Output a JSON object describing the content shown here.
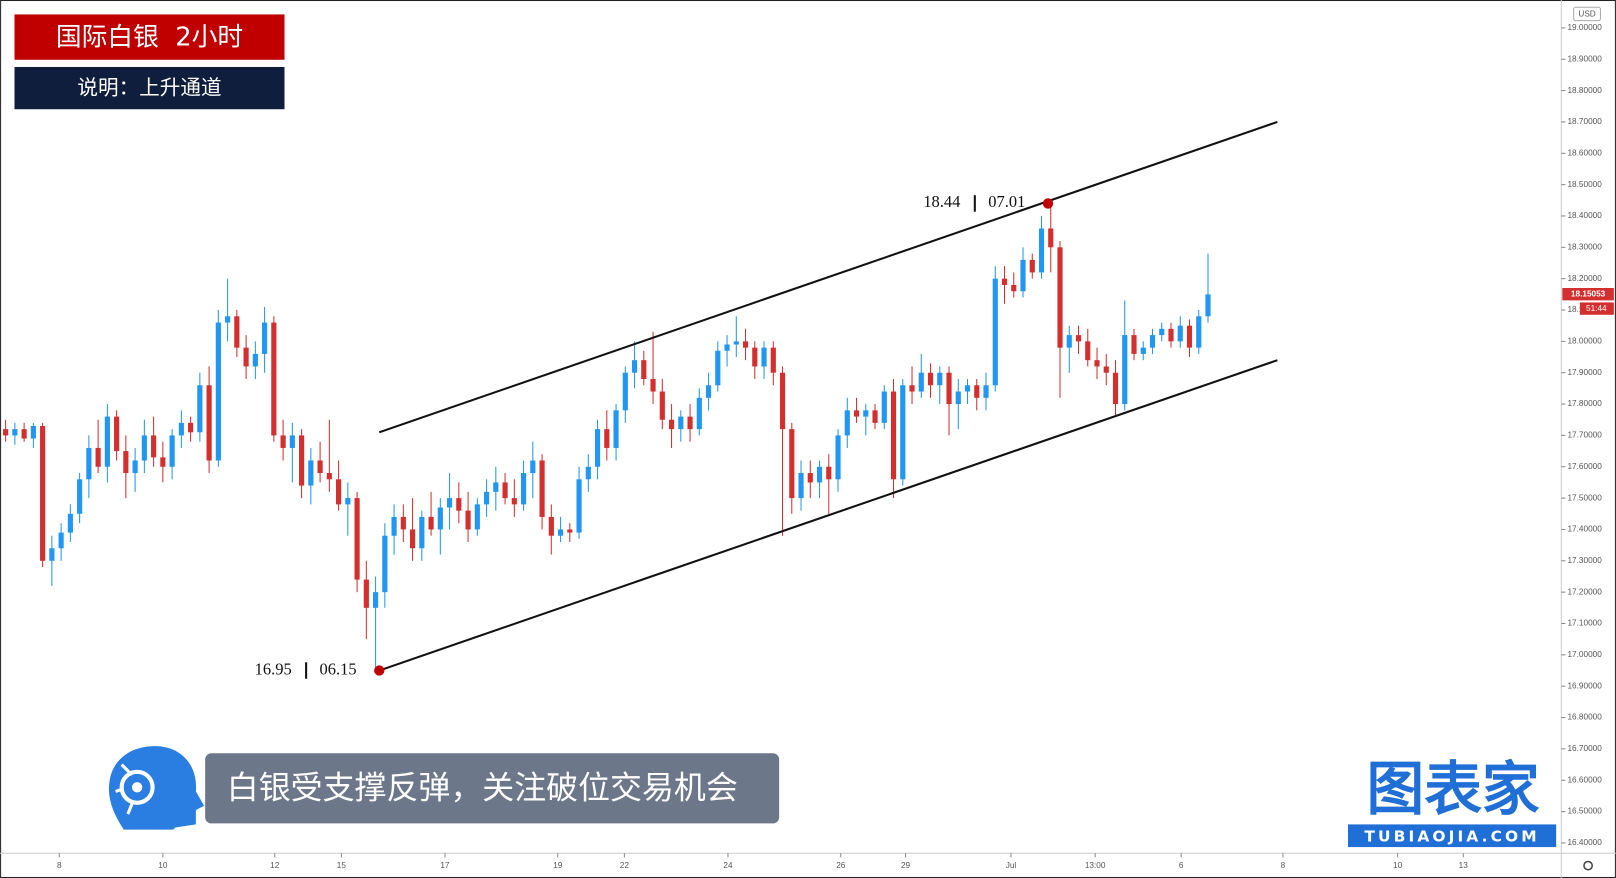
{
  "chart_data": {
    "type": "candlestick",
    "title": "国际白银  2小时",
    "subtitle": "说明：上升通道",
    "banner": "白银受支撑反弹，关注破位交易机会",
    "logo": "图表家",
    "logo_sub": "TUBIAOJIA.COM",
    "currency": "USD",
    "countdown": "51:44",
    "last_price": 18.15053,
    "up_color": "#2196f3",
    "down_color": "#d32f2f",
    "candles": [
      [
        17.72,
        17.75,
        17.68,
        17.7
      ],
      [
        17.7,
        17.74,
        17.67,
        17.72
      ],
      [
        17.72,
        17.74,
        17.68,
        17.69
      ],
      [
        17.69,
        17.74,
        17.66,
        17.73
      ],
      [
        17.73,
        17.74,
        17.28,
        17.3
      ],
      [
        17.3,
        17.38,
        17.22,
        17.34
      ],
      [
        17.34,
        17.42,
        17.3,
        17.39
      ],
      [
        17.39,
        17.48,
        17.36,
        17.45
      ],
      [
        17.45,
        17.58,
        17.42,
        17.56
      ],
      [
        17.56,
        17.7,
        17.5,
        17.66
      ],
      [
        17.66,
        17.75,
        17.58,
        17.6
      ],
      [
        17.6,
        17.8,
        17.55,
        17.76
      ],
      [
        17.76,
        17.78,
        17.62,
        17.65
      ],
      [
        17.65,
        17.7,
        17.5,
        17.58
      ],
      [
        17.58,
        17.66,
        17.52,
        17.62
      ],
      [
        17.62,
        17.75,
        17.58,
        17.7
      ],
      [
        17.7,
        17.76,
        17.6,
        17.63
      ],
      [
        17.63,
        17.68,
        17.55,
        17.6
      ],
      [
        17.6,
        17.72,
        17.56,
        17.7
      ],
      [
        17.7,
        17.78,
        17.66,
        17.74
      ],
      [
        17.74,
        17.76,
        17.68,
        17.71
      ],
      [
        17.71,
        17.9,
        17.68,
        17.86
      ],
      [
        17.86,
        17.92,
        17.58,
        17.62
      ],
      [
        17.62,
        18.1,
        17.6,
        18.06
      ],
      [
        18.06,
        18.2,
        18.0,
        18.08
      ],
      [
        18.08,
        18.1,
        17.95,
        17.98
      ],
      [
        17.98,
        18.02,
        17.88,
        17.92
      ],
      [
        17.92,
        18.0,
        17.88,
        17.96
      ],
      [
        17.96,
        18.11,
        17.9,
        18.06
      ],
      [
        18.06,
        18.08,
        17.68,
        17.7
      ],
      [
        17.7,
        17.75,
        17.62,
        17.66
      ],
      [
        17.66,
        17.74,
        17.55,
        17.7
      ],
      [
        17.7,
        17.72,
        17.5,
        17.54
      ],
      [
        17.54,
        17.66,
        17.48,
        17.62
      ],
      [
        17.62,
        17.68,
        17.55,
        17.58
      ],
      [
        17.58,
        17.75,
        17.52,
        17.56
      ],
      [
        17.56,
        17.62,
        17.46,
        17.48
      ],
      [
        17.48,
        17.55,
        17.38,
        17.5
      ],
      [
        17.5,
        17.52,
        17.2,
        17.24
      ],
      [
        17.24,
        17.3,
        17.05,
        17.15
      ],
      [
        17.15,
        17.25,
        16.95,
        17.2
      ],
      [
        17.2,
        17.42,
        17.15,
        17.38
      ],
      [
        17.38,
        17.48,
        17.32,
        17.44
      ],
      [
        17.44,
        17.48,
        17.36,
        17.4
      ],
      [
        17.4,
        17.5,
        17.3,
        17.34
      ],
      [
        17.34,
        17.46,
        17.3,
        17.44
      ],
      [
        17.44,
        17.52,
        17.38,
        17.4
      ],
      [
        17.4,
        17.5,
        17.32,
        17.47
      ],
      [
        17.47,
        17.58,
        17.4,
        17.5
      ],
      [
        17.5,
        17.55,
        17.42,
        17.46
      ],
      [
        17.46,
        17.52,
        17.36,
        17.4
      ],
      [
        17.4,
        17.5,
        17.38,
        17.48
      ],
      [
        17.48,
        17.56,
        17.44,
        17.52
      ],
      [
        17.52,
        17.6,
        17.46,
        17.55
      ],
      [
        17.55,
        17.58,
        17.48,
        17.5
      ],
      [
        17.5,
        17.56,
        17.44,
        17.48
      ],
      [
        17.48,
        17.62,
        17.46,
        17.58
      ],
      [
        17.58,
        17.68,
        17.5,
        17.62
      ],
      [
        17.62,
        17.64,
        17.4,
        17.44
      ],
      [
        17.44,
        17.48,
        17.32,
        17.38
      ],
      [
        17.38,
        17.44,
        17.36,
        17.4
      ],
      [
        17.4,
        17.42,
        17.36,
        17.39
      ],
      [
        17.39,
        17.6,
        17.37,
        17.56
      ],
      [
        17.56,
        17.64,
        17.52,
        17.6
      ],
      [
        17.6,
        17.75,
        17.56,
        17.72
      ],
      [
        17.72,
        17.78,
        17.62,
        17.66
      ],
      [
        17.66,
        17.8,
        17.62,
        17.78
      ],
      [
        17.78,
        17.92,
        17.74,
        17.9
      ],
      [
        17.9,
        18.0,
        17.85,
        17.94
      ],
      [
        17.94,
        17.97,
        17.86,
        17.88
      ],
      [
        17.88,
        18.03,
        17.8,
        17.84
      ],
      [
        17.84,
        17.88,
        17.72,
        17.75
      ],
      [
        17.75,
        17.8,
        17.66,
        17.72
      ],
      [
        17.72,
        17.78,
        17.68,
        17.76
      ],
      [
        17.76,
        17.8,
        17.68,
        17.72
      ],
      [
        17.72,
        17.85,
        17.7,
        17.82
      ],
      [
        17.82,
        17.9,
        17.78,
        17.86
      ],
      [
        17.86,
        18.0,
        17.84,
        17.97
      ],
      [
        17.97,
        18.02,
        17.92,
        17.99
      ],
      [
        17.99,
        18.08,
        17.95,
        18.0
      ],
      [
        18.0,
        18.04,
        17.94,
        17.98
      ],
      [
        17.98,
        18.0,
        17.88,
        17.92
      ],
      [
        17.92,
        18.0,
        17.88,
        17.98
      ],
      [
        17.98,
        18.0,
        17.86,
        17.9
      ],
      [
        17.9,
        17.92,
        17.38,
        17.72
      ],
      [
        17.72,
        17.74,
        17.45,
        17.5
      ],
      [
        17.5,
        17.62,
        17.46,
        17.58
      ],
      [
        17.58,
        17.62,
        17.5,
        17.55
      ],
      [
        17.55,
        17.62,
        17.5,
        17.6
      ],
      [
        17.6,
        17.64,
        17.45,
        17.56
      ],
      [
        17.56,
        17.72,
        17.52,
        17.7
      ],
      [
        17.7,
        17.82,
        17.66,
        17.78
      ],
      [
        17.78,
        17.82,
        17.74,
        17.76
      ],
      [
        17.76,
        17.8,
        17.7,
        17.78
      ],
      [
        17.78,
        17.8,
        17.72,
        17.74
      ],
      [
        17.74,
        17.86,
        17.72,
        17.84
      ],
      [
        17.84,
        17.88,
        17.5,
        17.56
      ],
      [
        17.56,
        17.88,
        17.54,
        17.86
      ],
      [
        17.86,
        17.92,
        17.8,
        17.84
      ],
      [
        17.84,
        17.96,
        17.82,
        17.9
      ],
      [
        17.9,
        17.93,
        17.82,
        17.86
      ],
      [
        17.86,
        17.92,
        17.8,
        17.9
      ],
      [
        17.9,
        17.92,
        17.7,
        17.8
      ],
      [
        17.8,
        17.88,
        17.72,
        17.84
      ],
      [
        17.84,
        17.88,
        17.8,
        17.86
      ],
      [
        17.86,
        17.88,
        17.78,
        17.82
      ],
      [
        17.82,
        17.9,
        17.78,
        17.86
      ],
      [
        17.86,
        18.24,
        17.84,
        18.2
      ],
      [
        18.2,
        18.24,
        18.12,
        18.18
      ],
      [
        18.18,
        18.22,
        18.14,
        18.16
      ],
      [
        18.16,
        18.3,
        18.14,
        18.26
      ],
      [
        18.26,
        18.28,
        18.2,
        18.22
      ],
      [
        18.22,
        18.4,
        18.2,
        18.36
      ],
      [
        18.36,
        18.44,
        18.22,
        18.3
      ],
      [
        18.3,
        18.32,
        17.82,
        17.98
      ],
      [
        17.98,
        18.05,
        17.9,
        18.02
      ],
      [
        18.02,
        18.05,
        17.96,
        18.0
      ],
      [
        18.0,
        18.04,
        17.92,
        17.94
      ],
      [
        17.94,
        17.98,
        17.88,
        17.92
      ],
      [
        17.92,
        17.96,
        17.86,
        17.9
      ],
      [
        17.9,
        17.94,
        17.76,
        17.8
      ],
      [
        17.8,
        18.13,
        17.78,
        18.02
      ],
      [
        18.02,
        18.04,
        17.94,
        17.96
      ],
      [
        17.96,
        18.0,
        17.94,
        17.98
      ],
      [
        17.98,
        18.04,
        17.96,
        18.02
      ],
      [
        18.02,
        18.06,
        18.0,
        18.04
      ],
      [
        18.04,
        18.06,
        17.98,
        18.0
      ],
      [
        18.0,
        18.08,
        17.98,
        18.05
      ],
      [
        18.05,
        18.07,
        17.95,
        17.98
      ],
      [
        17.98,
        18.1,
        17.96,
        18.08
      ],
      [
        18.08,
        18.28,
        18.06,
        18.15
      ]
    ],
    "xlim": [
      -0.6,
      168.2
    ],
    "xticks": [
      {
        "value": 5.8,
        "label": "8"
      },
      {
        "value": 17,
        "label": "10"
      },
      {
        "value": 29.1,
        "label": "12"
      },
      {
        "value": 36.3,
        "label": "15"
      },
      {
        "value": 47.5,
        "label": "17"
      },
      {
        "value": 59.7,
        "label": "19"
      },
      {
        "value": 66.9,
        "label": "22"
      },
      {
        "value": 78.1,
        "label": "24"
      },
      {
        "value": 90.3,
        "label": "26"
      },
      {
        "value": 97.3,
        "label": "29"
      },
      {
        "value": 108.7,
        "label": "Jul"
      },
      {
        "value": 117.8,
        "label": "13:00"
      },
      {
        "value": 127.1,
        "label": "6"
      },
      {
        "value": 138.1,
        "label": "8"
      },
      {
        "value": 150.5,
        "label": "10"
      },
      {
        "value": 157.6,
        "label": "13"
      }
    ],
    "ylim": [
      16.367,
      19.089
    ],
    "yticks": [
      {
        "value": 16.4,
        "label": "16.40000"
      },
      {
        "value": 16.5,
        "label": "16.50000"
      },
      {
        "value": 16.6,
        "label": "16.60000"
      },
      {
        "value": 16.7,
        "label": "16.70000"
      },
      {
        "value": 16.8,
        "label": "16.80000"
      },
      {
        "value": 16.9,
        "label": "16.90000"
      },
      {
        "value": 17,
        "label": "17.00000"
      },
      {
        "value": 17.1,
        "label": "17.10000"
      },
      {
        "value": 17.2,
        "label": "17.20000"
      },
      {
        "value": 17.3,
        "label": "17.30000"
      },
      {
        "value": 17.4,
        "label": "17.40000"
      },
      {
        "value": 17.5,
        "label": "17.50000"
      },
      {
        "value": 17.6,
        "label": "17.60000"
      },
      {
        "value": 17.7,
        "label": "17.70000"
      },
      {
        "value": 17.8,
        "label": "17.80000"
      },
      {
        "value": 17.9,
        "label": "17.90000"
      },
      {
        "value": 18,
        "label": "18.00000"
      },
      {
        "value": 18.1,
        "label": "18.10000"
      },
      {
        "value": 18.2,
        "label": "18.20000"
      },
      {
        "value": 18.3,
        "label": "18.30000"
      },
      {
        "value": 18.4,
        "label": "18.40000"
      },
      {
        "value": 18.5,
        "label": "18.50000"
      },
      {
        "value": 18.6,
        "label": "18.60000"
      },
      {
        "value": 18.7,
        "label": "18.70000"
      },
      {
        "value": 18.8,
        "label": "18.80000"
      },
      {
        "value": 18.9,
        "label": "18.90000"
      },
      {
        "value": 19,
        "label": "19.00000"
      }
    ],
    "channel": [
      {
        "x": [
          40.4,
          137.5
        ],
        "values": [
          17.71,
          18.7
        ]
      },
      {
        "x": [
          40.4,
          137.5
        ],
        "values": [
          16.95,
          17.94
        ]
      }
    ],
    "annotations": [
      {
        "x": 112.7,
        "value": 18.44,
        "date": "07.01"
      },
      {
        "x": 40.4,
        "value": 16.95,
        "date": "06.15"
      }
    ]
  }
}
